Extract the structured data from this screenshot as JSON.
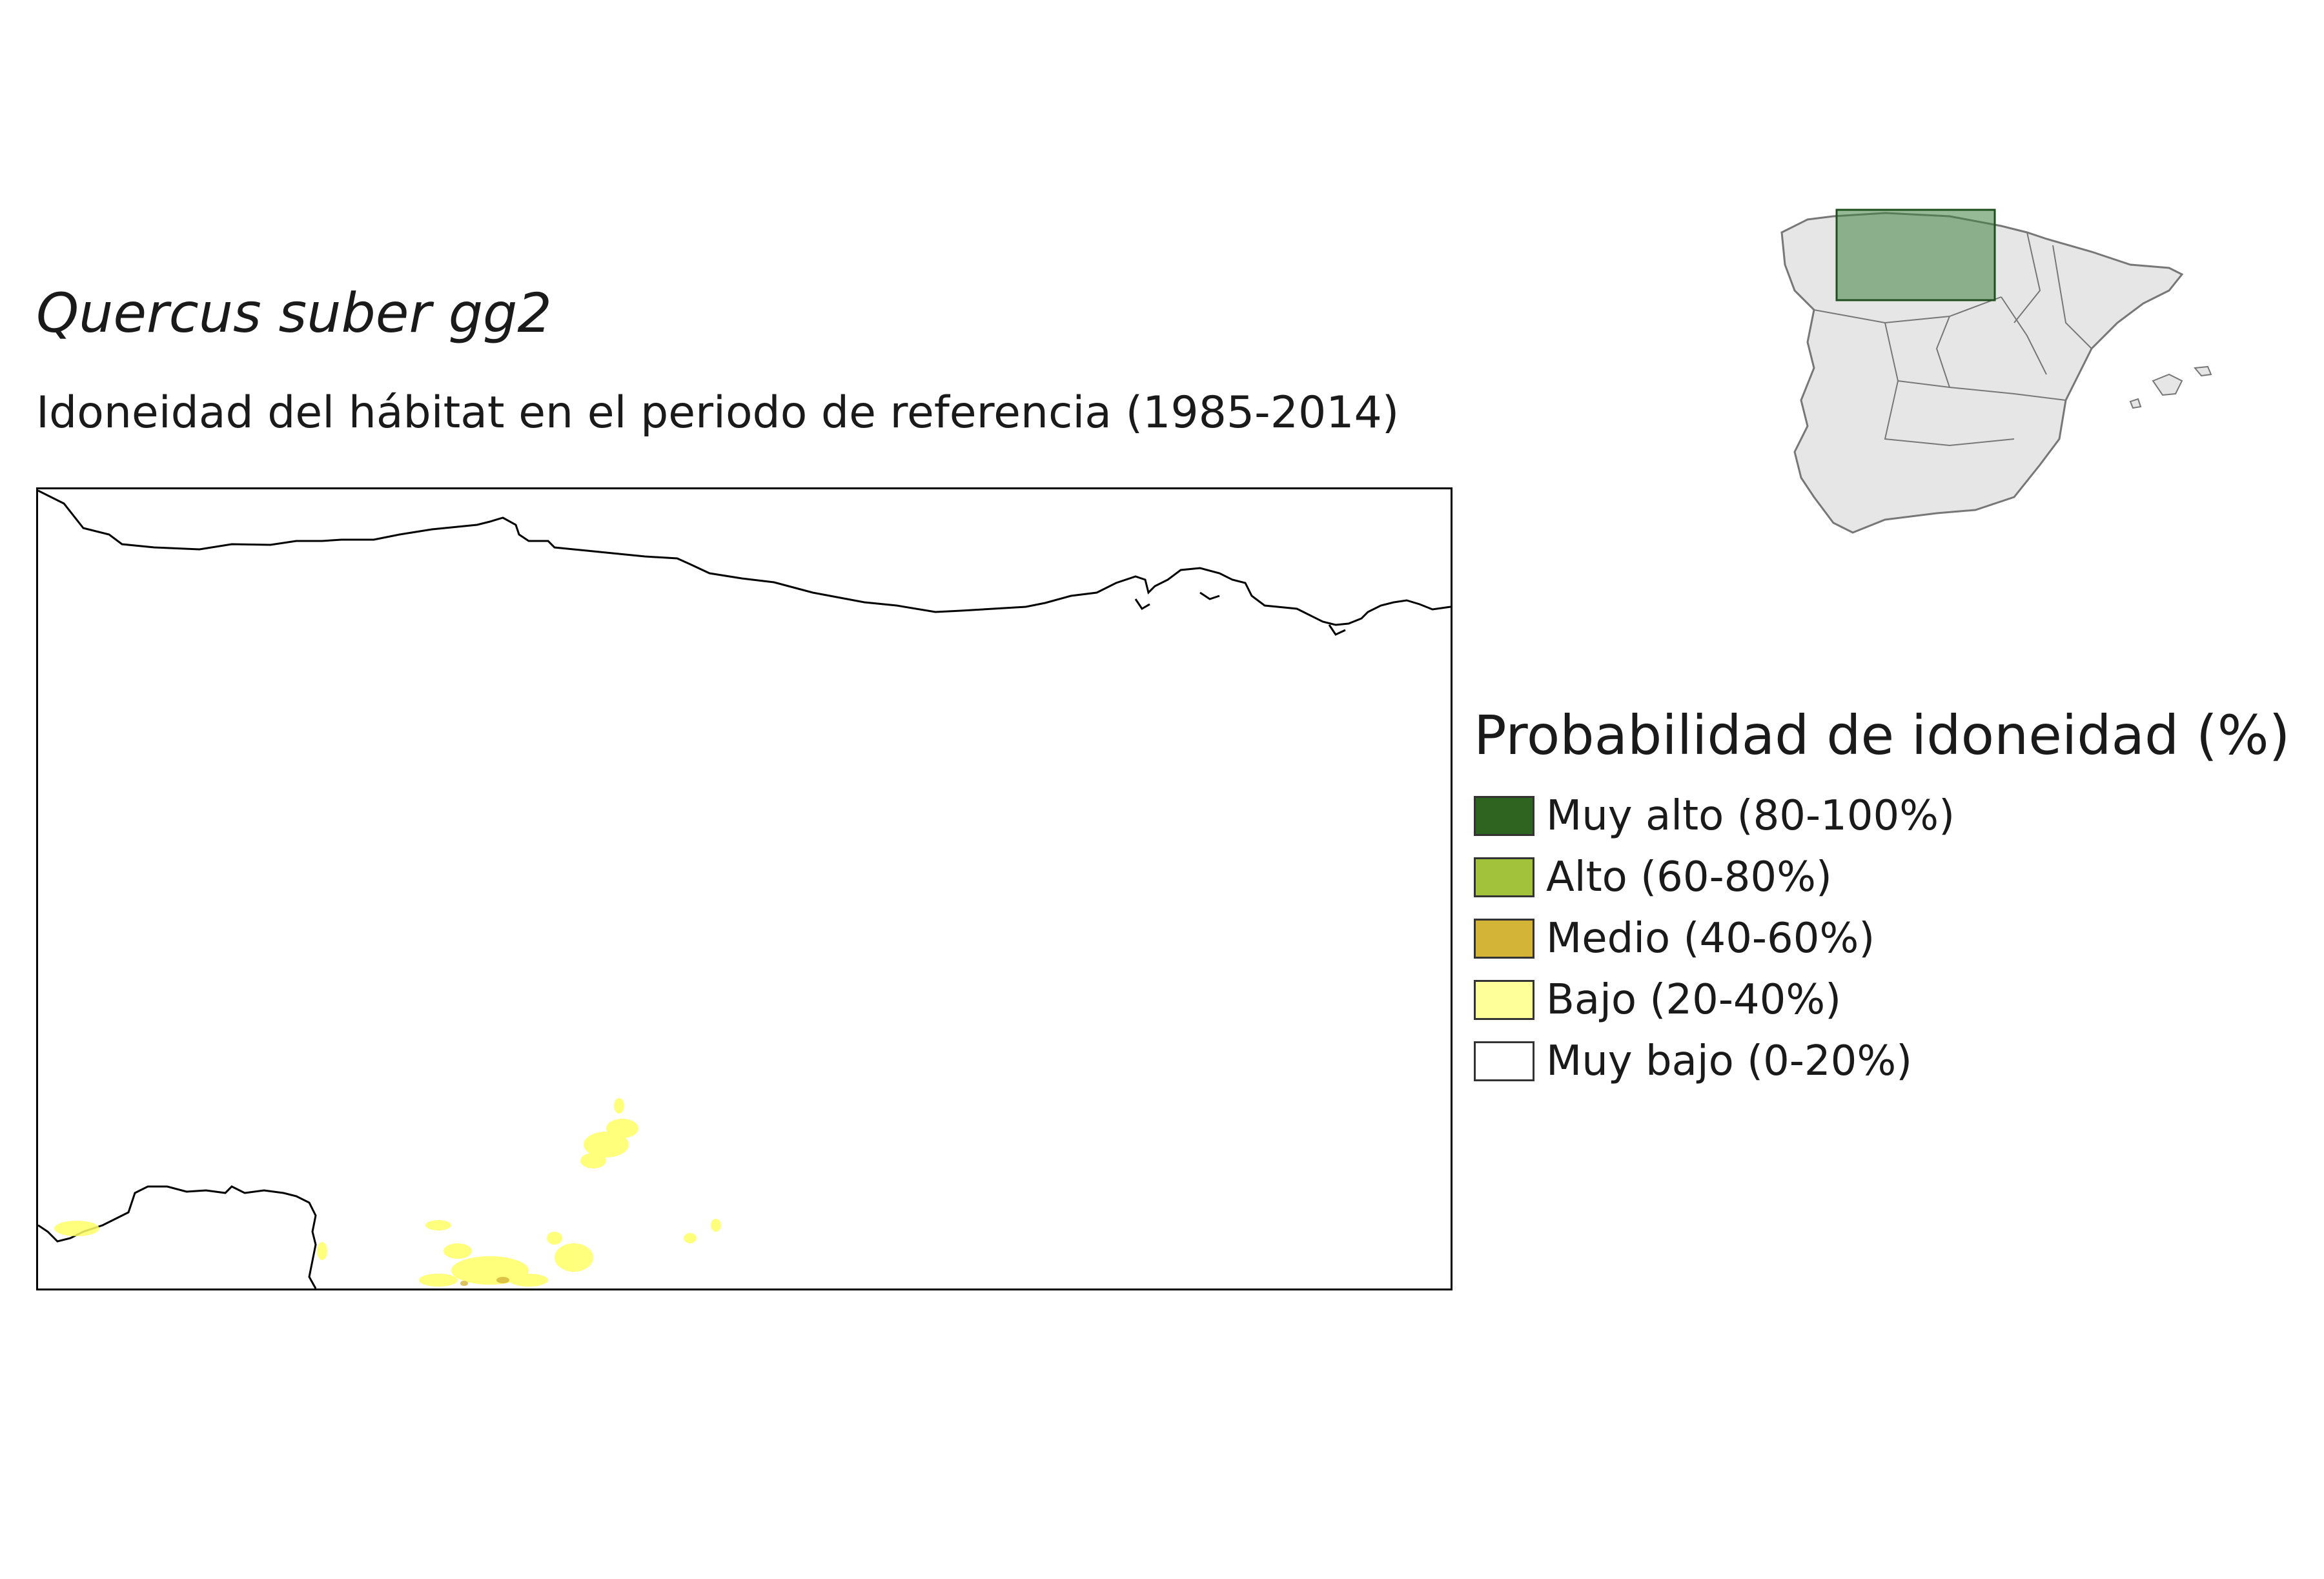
{
  "title": "Quercus suber gg2",
  "subtitle": "Idoneidad del hábitat en el periodo de referencia (1985-2014)",
  "legend": {
    "title": "Probabilidad de idoneidad (%)",
    "items": [
      {
        "label": "Muy alto (80-100%)",
        "color": "#2e6320"
      },
      {
        "label": "Alto (60-80%)",
        "color": "#a1c23a"
      },
      {
        "label": "Medio (40-60%)",
        "color": "#d4b437"
      },
      {
        "label": "Bajo (20-40%)",
        "color": "#ffff99"
      },
      {
        "label": "Muy bajo (0-20%)",
        "color": "#ffffff"
      }
    ]
  },
  "colors": {
    "land": "#e6e6e6",
    "land_border": "#777777",
    "inset_highlight": "#3f7f3f",
    "coast": "#000000"
  }
}
